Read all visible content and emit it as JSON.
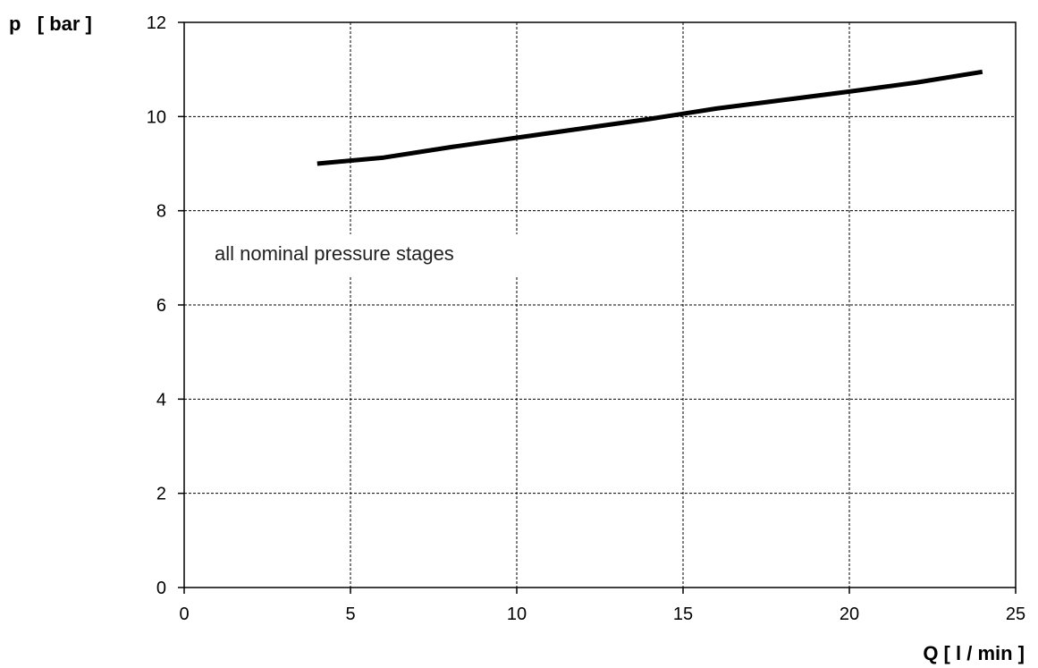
{
  "chart_data": {
    "type": "line",
    "ylabel": "p   [ bar ]",
    "xlabel": "Q [ l / min ]",
    "xlim": [
      0,
      25
    ],
    "ylim": [
      0,
      12
    ],
    "x_ticks": [
      0,
      5,
      10,
      15,
      20,
      25
    ],
    "y_ticks": [
      0,
      2,
      4,
      6,
      8,
      10,
      12
    ],
    "grid": true,
    "annotation": "all nominal pressure stages",
    "series": [
      {
        "x": [
          4,
          6,
          8,
          10,
          12,
          14,
          16,
          18,
          20,
          22,
          24
        ],
        "y": [
          9.0,
          9.13,
          9.35,
          9.55,
          9.75,
          9.95,
          10.17,
          10.35,
          10.53,
          10.72,
          10.95
        ],
        "color": "#000000"
      }
    ]
  }
}
